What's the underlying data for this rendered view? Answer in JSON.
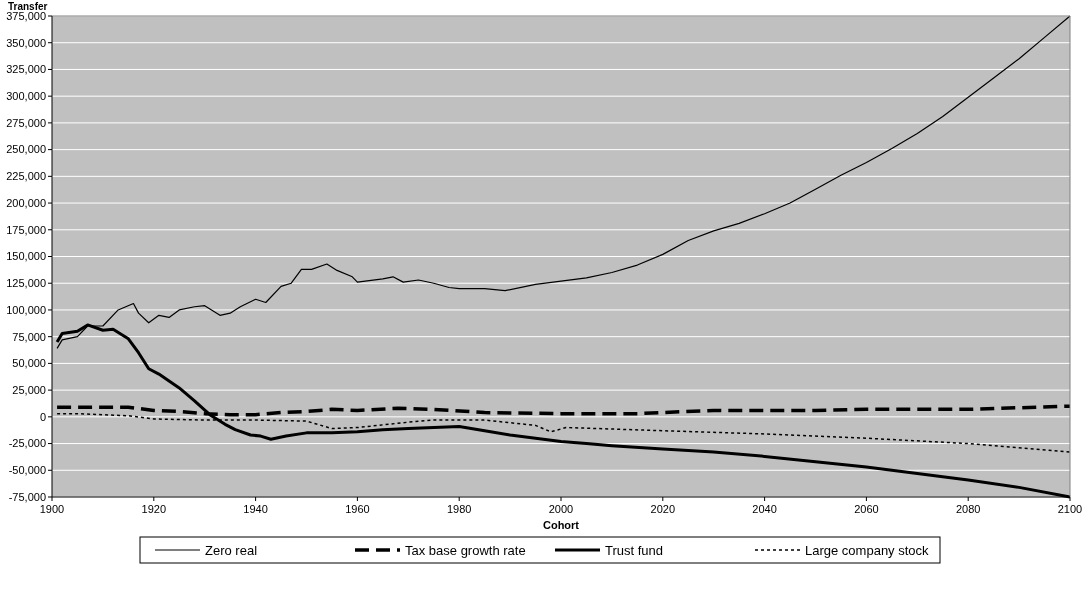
{
  "chart_data": {
    "type": "line",
    "xlabel": "Cohort",
    "ylabel": "Transfer",
    "xlim": [
      1900,
      2100
    ],
    "xticks": [
      1900,
      1920,
      1940,
      1960,
      1980,
      2000,
      2020,
      2040,
      2060,
      2080,
      2100
    ],
    "ylim": [
      -75000,
      375000
    ],
    "yticks": [
      {
        "value": -75000,
        "label": "-75,000"
      },
      {
        "value": -50000,
        "label": "-50,000"
      },
      {
        "value": -25000,
        "label": "-25,000"
      },
      {
        "value": 0,
        "label": "0"
      },
      {
        "value": 25000,
        "label": "25,000"
      },
      {
        "value": 50000,
        "label": "50,000"
      },
      {
        "value": 75000,
        "label": "75,000"
      },
      {
        "value": 100000,
        "label": "100,000"
      },
      {
        "value": 125000,
        "label": "125,000"
      },
      {
        "value": 150000,
        "label": "150,000"
      },
      {
        "value": 175000,
        "label": "175,000"
      },
      {
        "value": 200000,
        "label": "200,000"
      },
      {
        "value": 225000,
        "label": "225,000"
      },
      {
        "value": 250000,
        "label": "250,000"
      },
      {
        "value": 275000,
        "label": "275,000"
      },
      {
        "value": 300000,
        "label": "300,000"
      },
      {
        "value": 325000,
        "label": "325,000"
      },
      {
        "value": 350000,
        "label": "350,000"
      },
      {
        "value": 375000,
        "label": "375,000"
      }
    ],
    "grid": "y",
    "legend": "bottom",
    "series": [
      {
        "name": "Zero real",
        "color": "#000000",
        "line_style": "solid",
        "x": [
          1901,
          1902,
          1905,
          1907,
          1910,
          1913,
          1916,
          1917,
          1919,
          1921,
          1923,
          1925,
          1928,
          1930,
          1933,
          1935,
          1937,
          1940,
          1942,
          1945,
          1947,
          1949,
          1951,
          1954,
          1956,
          1959,
          1960,
          1965,
          1967,
          1969,
          1972,
          1975,
          1978,
          1980,
          1985,
          1989,
          1995,
          2000,
          2005,
          2010,
          2015,
          2020,
          2025,
          2030,
          2035,
          2040,
          2045,
          2050,
          2055,
          2060,
          2065,
          2070,
          2075,
          2080,
          2085,
          2090,
          2095,
          2100
        ],
        "values": [
          64000,
          72000,
          75000,
          85000,
          85000,
          100000,
          106000,
          97000,
          88000,
          95000,
          93000,
          100000,
          103000,
          104000,
          95000,
          97000,
          103000,
          110000,
          107000,
          122000,
          125000,
          138000,
          138000,
          143000,
          137000,
          131000,
          126000,
          129000,
          131000,
          126000,
          128000,
          125000,
          121000,
          120000,
          120000,
          118000,
          124000,
          127000,
          130000,
          135000,
          142000,
          152000,
          165000,
          174000,
          181000,
          190000,
          200000,
          213000,
          226000,
          238000,
          251000,
          265000,
          281000,
          299000,
          317000,
          335000,
          355000,
          375000
        ]
      },
      {
        "name": "Tax base growth rate",
        "color": "#000000",
        "line_style": "dashed",
        "x": [
          1901,
          1905,
          1910,
          1915,
          1920,
          1925,
          1930,
          1935,
          1940,
          1945,
          1950,
          1955,
          1960,
          1968,
          1975,
          1985,
          2000,
          2015,
          2030,
          2050,
          2060,
          2080,
          2100
        ],
        "values": [
          9000,
          9000,
          9000,
          9000,
          6000,
          5000,
          3000,
          2000,
          2000,
          4000,
          5000,
          7000,
          6000,
          8000,
          7000,
          4000,
          3000,
          3000,
          6000,
          6000,
          7000,
          7000,
          10000
        ]
      },
      {
        "name": "Trust fund",
        "color": "#000000",
        "line_style": "solid",
        "x": [
          1901,
          1902,
          1905,
          1907,
          1910,
          1912,
          1915,
          1917,
          1919,
          1921,
          1925,
          1928,
          1931,
          1934,
          1936,
          1939,
          1941,
          1943,
          1946,
          1950,
          1955,
          1960,
          1965,
          1970,
          1975,
          1980,
          1985,
          1990,
          1995,
          2000,
          2005,
          2010,
          2020,
          2030,
          2040,
          2050,
          2060,
          2070,
          2080,
          2090,
          2100
        ],
        "values": [
          70000,
          78000,
          80000,
          86000,
          81000,
          82000,
          73000,
          60000,
          45000,
          40000,
          27000,
          15000,
          2000,
          -7000,
          -12000,
          -17000,
          -18000,
          -21000,
          -18000,
          -15000,
          -15000,
          -14000,
          -12000,
          -11000,
          -10000,
          -9000,
          -13000,
          -17000,
          -20000,
          -23000,
          -25000,
          -27000,
          -30000,
          -33000,
          -37000,
          -42000,
          -47000,
          -53000,
          -59000,
          -66000,
          -75000
        ]
      },
      {
        "name": "Large company stock",
        "color": "#000000",
        "line_style": "dotted",
        "x": [
          1901,
          1905,
          1915,
          1920,
          1930,
          1940,
          1950,
          1955,
          1960,
          1970,
          1975,
          1985,
          1995,
          1998,
          2001,
          2020,
          2040,
          2060,
          2080,
          2100
        ],
        "values": [
          3000,
          3000,
          1000,
          -2000,
          -3000,
          -3000,
          -4000,
          -11000,
          -10000,
          -5000,
          -3000,
          -3000,
          -8000,
          -14000,
          -10000,
          -13000,
          -16000,
          -20000,
          -25000,
          -33000
        ]
      }
    ]
  }
}
